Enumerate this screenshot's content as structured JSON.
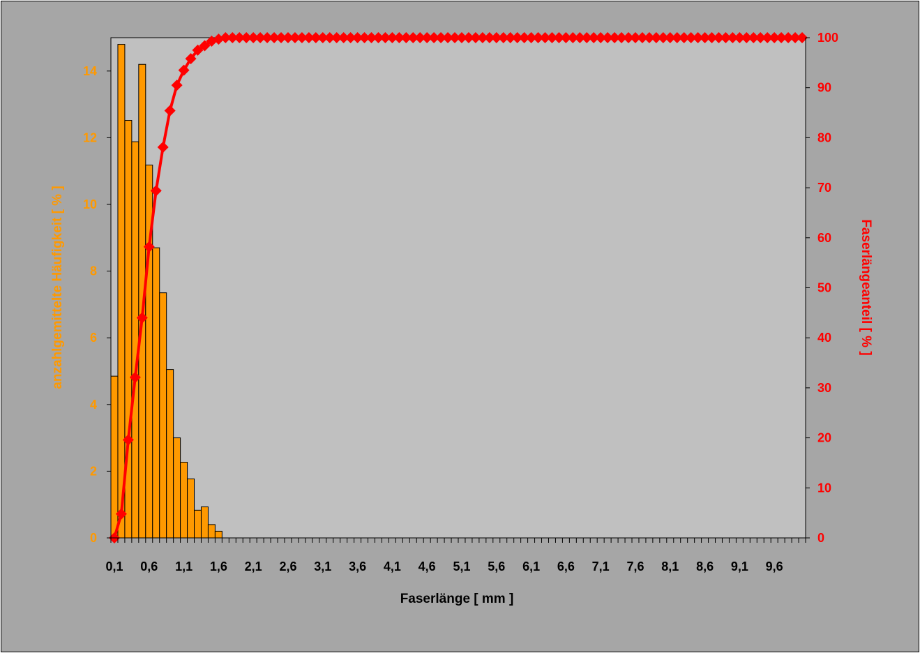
{
  "chart_data": {
    "type": "bar",
    "title": "",
    "xlabel": "Faserlänge [ mm ]",
    "ylabel": "anzahlgemittelte Häufigkeit [ % ]",
    "y2label": "Faserlängeanteil [ % ]",
    "x": [
      0.1,
      0.2,
      0.3,
      0.4,
      0.5,
      0.6,
      0.7,
      0.8,
      0.9,
      1.0,
      1.1,
      1.2,
      1.3,
      1.4,
      1.5,
      1.6,
      1.7,
      1.8,
      1.9,
      2.0,
      2.1,
      2.2,
      2.3,
      2.4,
      2.5,
      2.6,
      2.7,
      2.8,
      2.9,
      3.0,
      3.1,
      3.2,
      3.3,
      3.4,
      3.5,
      3.6,
      3.7,
      3.8,
      3.9,
      4.0,
      4.1,
      4.2,
      4.3,
      4.4,
      4.5,
      4.6,
      4.7,
      4.8,
      4.9,
      5.0,
      5.1,
      5.2,
      5.3,
      5.4,
      5.5,
      5.6,
      5.7,
      5.8,
      5.9,
      6.0,
      6.1,
      6.2,
      6.3,
      6.4,
      6.5,
      6.6,
      6.7,
      6.8,
      6.9,
      7.0,
      7.1,
      7.2,
      7.3,
      7.4,
      7.5,
      7.6,
      7.7,
      7.8,
      7.9,
      8.0,
      8.1,
      8.2,
      8.3,
      8.4,
      8.5,
      8.6,
      8.7,
      8.8,
      8.9,
      9.0,
      9.1,
      9.2,
      9.3,
      9.4,
      9.5,
      9.6,
      9.7,
      9.8,
      9.9,
      10.0
    ],
    "x_tick_labels": [
      "0,1",
      "0,6",
      "1,1",
      "1,6",
      "2,1",
      "2,6",
      "3,1",
      "3,6",
      "4,1",
      "4,6",
      "5,1",
      "5,6",
      "6,1",
      "6,6",
      "7,1",
      "7,6",
      "8,1",
      "8,6",
      "9,1",
      "9,6"
    ],
    "ylim": [
      0,
      15
    ],
    "y_ticks": [
      "0",
      "2",
      "4",
      "6",
      "8",
      "10",
      "12",
      "14"
    ],
    "y2lim": [
      0,
      100
    ],
    "y2_ticks": [
      "0",
      "10",
      "20",
      "30",
      "40",
      "50",
      "60",
      "70",
      "80",
      "90",
      "100"
    ],
    "series": [
      {
        "name": "",
        "type": "bar",
        "axis": "left",
        "values": [
          4.85,
          14.8,
          12.52,
          11.88,
          14.2,
          11.18,
          8.7,
          7.35,
          5.05,
          3.0,
          2.27,
          1.77,
          0.83,
          0.93,
          0.4,
          0.2,
          0,
          0,
          0,
          0,
          0,
          0,
          0,
          0,
          0,
          0,
          0,
          0,
          0,
          0,
          0,
          0,
          0,
          0,
          0,
          0,
          0,
          0,
          0,
          0,
          0,
          0,
          0,
          0,
          0,
          0,
          0,
          0,
          0,
          0,
          0,
          0,
          0,
          0,
          0,
          0,
          0,
          0,
          0,
          0,
          0,
          0,
          0,
          0,
          0,
          0,
          0,
          0,
          0,
          0,
          0,
          0,
          0,
          0,
          0,
          0,
          0,
          0,
          0,
          0,
          0,
          0,
          0,
          0,
          0,
          0,
          0,
          0,
          0,
          0,
          0,
          0,
          0,
          0,
          0,
          0,
          0,
          0,
          0,
          0
        ]
      },
      {
        "name": "",
        "type": "line",
        "axis": "right",
        "marker": "diamond",
        "values": [
          0,
          4.8,
          19.6,
          32.1,
          44.0,
          58.2,
          69.4,
          78.1,
          85.4,
          90.5,
          93.5,
          95.8,
          97.5,
          98.4,
          99.3,
          99.7,
          100,
          100,
          100,
          100,
          100,
          100,
          100,
          100,
          100,
          100,
          100,
          100,
          100,
          100,
          100,
          100,
          100,
          100,
          100,
          100,
          100,
          100,
          100,
          100,
          100,
          100,
          100,
          100,
          100,
          100,
          100,
          100,
          100,
          100,
          100,
          100,
          100,
          100,
          100,
          100,
          100,
          100,
          100,
          100,
          100,
          100,
          100,
          100,
          100,
          100,
          100,
          100,
          100,
          100,
          100,
          100,
          100,
          100,
          100,
          100,
          100,
          100,
          100,
          100,
          100,
          100,
          100,
          100,
          100,
          100,
          100,
          100,
          100,
          100,
          100,
          100,
          100,
          100,
          100,
          100,
          100,
          100,
          100,
          100
        ]
      }
    ],
    "grid": false,
    "colors": {
      "frame_bg": "#a6a6a6",
      "plot_bg": "#c0c0c0",
      "bar_fill": "#ff9900",
      "bar_stroke": "#000000",
      "line": "#ff0000",
      "left_axis_text": "#ff9900",
      "right_axis_text": "#ff0000",
      "x_axis_text": "#000000"
    }
  }
}
